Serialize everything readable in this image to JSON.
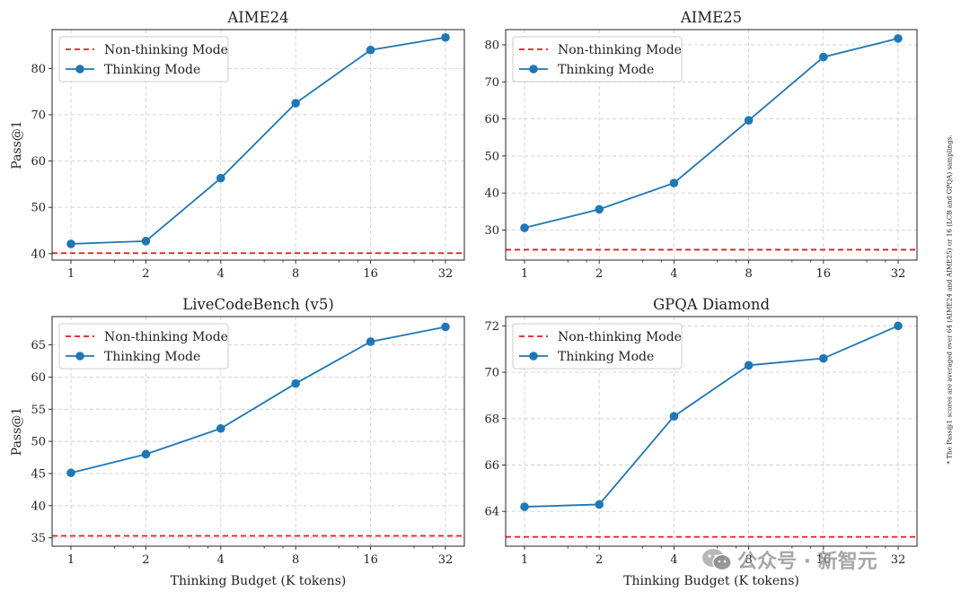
{
  "footnote": "* The Pass@1 scores are averaged over 64 (AIME24 and AIME25) or 16 (LCB and GPQA) samplings.",
  "watermark": {
    "text": "公众号 · 新智元",
    "icon": "wechat-icon"
  },
  "colors": {
    "thinking": "#1f77b4",
    "nonthinking": "#e41a1c",
    "grid": "#cfcfcf"
  },
  "chart_data": [
    {
      "type": "line",
      "title": "AIME24",
      "xlabel": "",
      "ylabel": "Pass@1",
      "categories": [
        "1",
        "2",
        "4",
        "8",
        "16",
        "32"
      ],
      "ylim": [
        38.6,
        88.4
      ],
      "yticks": [
        40,
        50,
        60,
        70,
        80
      ],
      "series": [
        {
          "name": "Non-thinking Mode",
          "style": "dashed",
          "values": [
            40.1,
            40.1,
            40.1,
            40.1,
            40.1,
            40.1
          ]
        },
        {
          "name": "Thinking Mode",
          "style": "solid-marker",
          "values": [
            42.1,
            42.7,
            56.3,
            72.5,
            84.0,
            86.7
          ]
        }
      ],
      "legend": "top-left"
    },
    {
      "type": "line",
      "title": "AIME25",
      "xlabel": "",
      "ylabel": "",
      "categories": [
        "1",
        "2",
        "4",
        "8",
        "16",
        "32"
      ],
      "ylim": [
        21.9,
        84.1
      ],
      "yticks": [
        30,
        40,
        50,
        60,
        70,
        80
      ],
      "series": [
        {
          "name": "Non-thinking Mode",
          "style": "dashed",
          "values": [
            24.7,
            24.7,
            24.7,
            24.7,
            24.7,
            24.7
          ]
        },
        {
          "name": "Thinking Mode",
          "style": "solid-marker",
          "values": [
            30.6,
            35.6,
            42.7,
            59.6,
            76.7,
            81.7
          ]
        }
      ],
      "legend": "top-left"
    },
    {
      "type": "line",
      "title": "LiveCodeBench (v5)",
      "xlabel": "Thinking Budget (K tokens)",
      "ylabel": "Pass@1",
      "categories": [
        "1",
        "2",
        "4",
        "8",
        "16",
        "32"
      ],
      "ylim": [
        33.7,
        69.4
      ],
      "yticks": [
        35,
        40,
        45,
        50,
        55,
        60,
        65
      ],
      "series": [
        {
          "name": "Non-thinking Mode",
          "style": "dashed",
          "values": [
            35.3,
            35.3,
            35.3,
            35.3,
            35.3,
            35.3
          ]
        },
        {
          "name": "Thinking Mode",
          "style": "solid-marker",
          "values": [
            45.1,
            48.0,
            52.0,
            59.0,
            65.5,
            67.8
          ]
        }
      ],
      "legend": "top-left"
    },
    {
      "type": "line",
      "title": "GPQA Diamond",
      "xlabel": "Thinking Budget (K tokens)",
      "ylabel": "",
      "categories": [
        "1",
        "2",
        "4",
        "8",
        "16",
        "32"
      ],
      "ylim": [
        62.5,
        72.4
      ],
      "yticks": [
        64,
        66,
        68,
        70,
        72
      ],
      "series": [
        {
          "name": "Non-thinking Mode",
          "style": "dashed",
          "values": [
            62.9,
            62.9,
            62.9,
            62.9,
            62.9,
            62.9
          ]
        },
        {
          "name": "Thinking Mode",
          "style": "solid-marker",
          "values": [
            64.2,
            64.3,
            68.1,
            70.3,
            70.6,
            72.0
          ]
        }
      ],
      "legend": "top-left"
    }
  ]
}
